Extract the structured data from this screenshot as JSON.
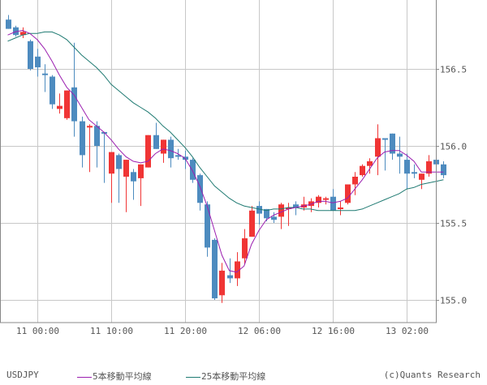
{
  "symbol": "USDJPY",
  "copyright": "(c)Quants Research",
  "legend": [
    {
      "label": "5本移動平均線",
      "color": "#9b1fb0"
    },
    {
      "label": "25本移動平均線",
      "color": "#1f7a72"
    }
  ],
  "colors": {
    "up": "#f03535",
    "down": "#4d8bbf",
    "grid": "#c8c8c8",
    "border": "#888888",
    "ma5": "#9b1fb0",
    "ma25": "#1f7a72",
    "text": "#555555"
  },
  "chart_data": {
    "type": "candlestick",
    "title": "USDJPY",
    "xlabel": "",
    "ylabel": "",
    "ylim": [
      154.93,
      156.95
    ],
    "y_ticks": [
      155.0,
      155.5,
      156.0,
      156.5
    ],
    "y_tick_labels": [
      "155.0",
      "155.5",
      "156.0",
      "156.5"
    ],
    "x_tick_labels": [
      "11 00:00",
      "11 10:00",
      "11 20:00",
      "12 06:00",
      "12 16:00",
      "13 02:00"
    ],
    "x_tick_index": [
      4,
      14,
      24,
      34,
      44,
      54
    ],
    "grid": true,
    "legend_position": "bottom",
    "candles": [
      {
        "o": 156.82,
        "h": 156.85,
        "l": 156.76,
        "c": 156.76
      },
      {
        "o": 156.77,
        "h": 156.78,
        "l": 156.71,
        "c": 156.72
      },
      {
        "o": 156.72,
        "h": 156.77,
        "l": 156.7,
        "c": 156.74
      },
      {
        "o": 156.68,
        "h": 156.69,
        "l": 156.49,
        "c": 156.5
      },
      {
        "o": 156.58,
        "h": 156.63,
        "l": 156.45,
        "c": 156.51
      },
      {
        "o": 156.47,
        "h": 156.53,
        "l": 156.35,
        "c": 156.46
      },
      {
        "o": 156.45,
        "h": 156.46,
        "l": 156.24,
        "c": 156.27
      },
      {
        "o": 156.24,
        "h": 156.34,
        "l": 156.21,
        "c": 156.26
      },
      {
        "o": 156.18,
        "h": 156.25,
        "l": 156.17,
        "c": 156.36
      },
      {
        "o": 156.38,
        "h": 156.67,
        "l": 156.06,
        "c": 156.16
      },
      {
        "o": 156.16,
        "h": 156.19,
        "l": 155.86,
        "c": 155.94
      },
      {
        "o": 156.12,
        "h": 156.14,
        "l": 155.83,
        "c": 156.13
      },
      {
        "o": 156.13,
        "h": 156.16,
        "l": 155.86,
        "c": 156.0
      },
      {
        "o": 156.09,
        "h": 156.08,
        "l": 155.76,
        "c": 156.08
      },
      {
        "o": 155.82,
        "h": 155.93,
        "l": 155.63,
        "c": 155.96
      },
      {
        "o": 155.94,
        "h": 155.95,
        "l": 155.63,
        "c": 155.85
      },
      {
        "o": 155.8,
        "h": 155.89,
        "l": 155.57,
        "c": 155.91
      },
      {
        "o": 155.83,
        "h": 155.85,
        "l": 155.65,
        "c": 155.77
      },
      {
        "o": 155.79,
        "h": 155.88,
        "l": 155.61,
        "c": 155.88
      },
      {
        "o": 155.86,
        "h": 156.05,
        "l": 155.86,
        "c": 156.07
      },
      {
        "o": 156.07,
        "h": 156.15,
        "l": 155.98,
        "c": 155.98
      },
      {
        "o": 155.95,
        "h": 156.04,
        "l": 155.89,
        "c": 156.04
      },
      {
        "o": 156.04,
        "h": 156.06,
        "l": 155.86,
        "c": 155.92
      },
      {
        "o": 155.94,
        "h": 155.98,
        "l": 155.91,
        "c": 155.93
      },
      {
        "o": 155.93,
        "h": 155.97,
        "l": 155.85,
        "c": 155.91
      },
      {
        "o": 155.91,
        "h": 155.92,
        "l": 155.76,
        "c": 155.78
      },
      {
        "o": 155.81,
        "h": 155.82,
        "l": 155.58,
        "c": 155.63
      },
      {
        "o": 155.62,
        "h": 155.64,
        "l": 155.28,
        "c": 155.34
      },
      {
        "o": 155.39,
        "h": 155.4,
        "l": 155.0,
        "c": 155.01
      },
      {
        "o": 155.03,
        "h": 155.24,
        "l": 154.98,
        "c": 155.19
      },
      {
        "o": 155.16,
        "h": 155.27,
        "l": 155.11,
        "c": 155.14
      },
      {
        "o": 155.14,
        "h": 155.31,
        "l": 155.09,
        "c": 155.25
      },
      {
        "o": 155.27,
        "h": 155.46,
        "l": 155.23,
        "c": 155.4
      },
      {
        "o": 155.41,
        "h": 155.61,
        "l": 155.41,
        "c": 155.58
      },
      {
        "o": 155.61,
        "h": 155.64,
        "l": 155.49,
        "c": 155.56
      },
      {
        "o": 155.59,
        "h": 155.59,
        "l": 155.51,
        "c": 155.53
      },
      {
        "o": 155.54,
        "h": 155.57,
        "l": 155.5,
        "c": 155.52
      },
      {
        "o": 155.54,
        "h": 155.63,
        "l": 155.46,
        "c": 155.62
      },
      {
        "o": 155.6,
        "h": 155.63,
        "l": 155.48,
        "c": 155.6
      },
      {
        "o": 155.62,
        "h": 155.64,
        "l": 155.55,
        "c": 155.6
      },
      {
        "o": 155.6,
        "h": 155.67,
        "l": 155.58,
        "c": 155.62
      },
      {
        "o": 155.61,
        "h": 155.66,
        "l": 155.57,
        "c": 155.64
      },
      {
        "o": 155.63,
        "h": 155.68,
        "l": 155.6,
        "c": 155.67
      },
      {
        "o": 155.66,
        "h": 155.67,
        "l": 155.62,
        "c": 155.66
      },
      {
        "o": 155.67,
        "h": 155.72,
        "l": 155.58,
        "c": 155.58
      },
      {
        "o": 155.59,
        "h": 155.64,
        "l": 155.55,
        "c": 155.6
      },
      {
        "o": 155.63,
        "h": 155.75,
        "l": 155.62,
        "c": 155.75
      },
      {
        "o": 155.75,
        "h": 155.83,
        "l": 155.68,
        "c": 155.8
      },
      {
        "o": 155.81,
        "h": 155.88,
        "l": 155.8,
        "c": 155.87
      },
      {
        "o": 155.87,
        "h": 155.92,
        "l": 155.82,
        "c": 155.9
      },
      {
        "o": 155.93,
        "h": 156.14,
        "l": 155.81,
        "c": 156.05
      },
      {
        "o": 156.05,
        "h": 156.04,
        "l": 155.84,
        "c": 156.04
      },
      {
        "o": 156.08,
        "h": 156.08,
        "l": 155.91,
        "c": 155.95
      },
      {
        "o": 155.95,
        "h": 156.06,
        "l": 155.82,
        "c": 155.93
      },
      {
        "o": 155.91,
        "h": 155.95,
        "l": 155.72,
        "c": 155.82
      },
      {
        "o": 155.83,
        "h": 155.88,
        "l": 155.79,
        "c": 155.82
      },
      {
        "o": 155.78,
        "h": 155.79,
        "l": 155.72,
        "c": 155.82
      },
      {
        "o": 155.82,
        "h": 155.94,
        "l": 155.8,
        "c": 155.9
      },
      {
        "o": 155.91,
        "h": 155.92,
        "l": 155.79,
        "c": 155.88
      },
      {
        "o": 155.88,
        "h": 155.9,
        "l": 155.79,
        "c": 155.81
      }
    ],
    "series": [
      {
        "name": "5本移動平均線",
        "values": [
          156.72,
          156.74,
          156.75,
          156.73,
          156.69,
          156.63,
          156.55,
          156.46,
          156.38,
          156.33,
          156.25,
          156.17,
          156.13,
          156.09,
          156.04,
          155.98,
          155.93,
          155.9,
          155.89,
          155.9,
          155.95,
          155.98,
          155.97,
          155.95,
          155.92,
          155.84,
          155.74,
          155.61,
          155.45,
          155.29,
          155.19,
          155.18,
          155.22,
          155.36,
          155.45,
          155.52,
          155.55,
          155.57,
          155.59,
          155.6,
          155.61,
          155.62,
          155.64,
          155.64,
          155.63,
          155.64,
          155.66,
          155.72,
          155.78,
          155.85,
          155.92,
          155.96,
          155.97,
          155.97,
          155.94,
          155.9,
          155.83,
          155.83,
          155.83,
          155.83
        ]
      },
      {
        "name": "25本移動平均線",
        "values": [
          156.68,
          156.7,
          156.72,
          156.73,
          156.73,
          156.74,
          156.74,
          156.72,
          156.69,
          156.64,
          156.59,
          156.55,
          156.51,
          156.46,
          156.4,
          156.36,
          156.32,
          156.28,
          156.25,
          156.22,
          156.18,
          156.13,
          156.09,
          156.04,
          155.99,
          155.93,
          155.86,
          155.8,
          155.74,
          155.7,
          155.66,
          155.63,
          155.61,
          155.6,
          155.59,
          155.58,
          155.59,
          155.59,
          155.6,
          155.6,
          155.59,
          155.59,
          155.58,
          155.58,
          155.58,
          155.58,
          155.58,
          155.58,
          155.59,
          155.61,
          155.63,
          155.65,
          155.67,
          155.69,
          155.72,
          155.73,
          155.75,
          155.76,
          155.77,
          155.78
        ]
      }
    ]
  }
}
